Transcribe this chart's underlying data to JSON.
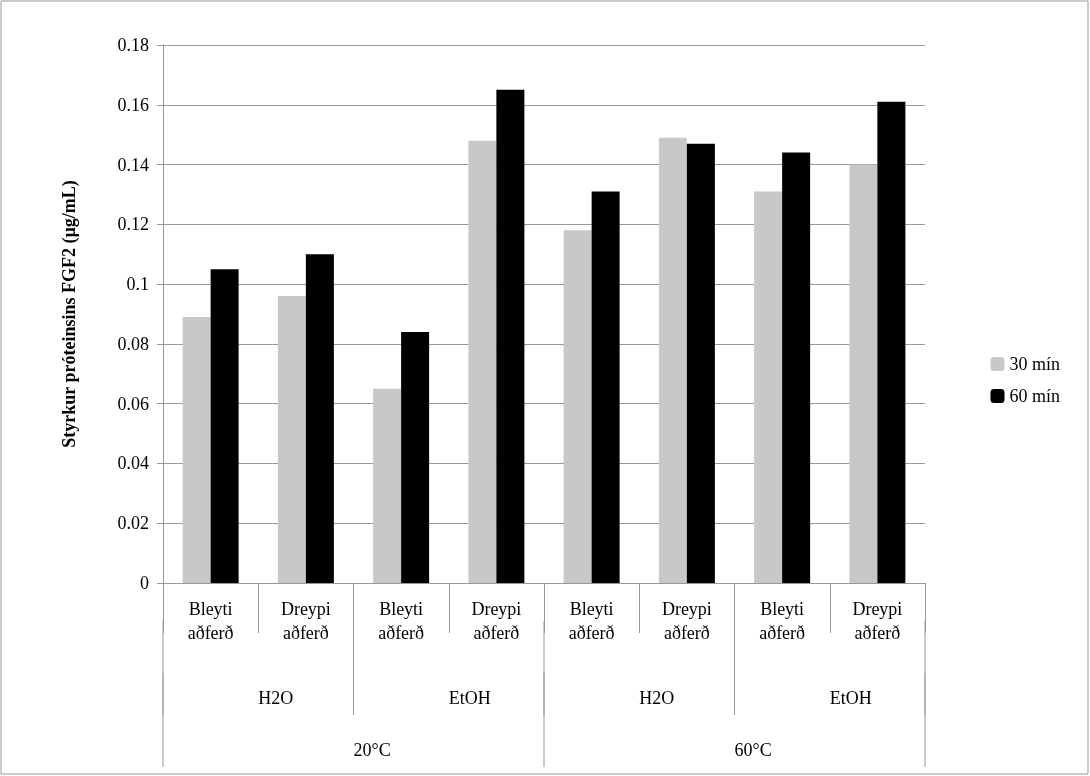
{
  "chart_data": {
    "type": "bar",
    "ylabel": "Styrkur próteinsins FGF2 (µg/mL)",
    "categories": [
      "Bleyti\naðferð",
      "Dreypi\naðferð",
      "Bleyti\naðferð",
      "Dreypi\naðferð",
      "Bleyti\naðferð",
      "Dreypi\naðferð",
      "Bleyti\naðferð",
      "Dreypi\naðferð"
    ],
    "series": [
      {
        "name": "30 mín",
        "color": "#c8c8c8",
        "values": [
          0.089,
          0.096,
          0.065,
          0.148,
          0.118,
          0.149,
          0.131,
          0.14
        ]
      },
      {
        "name": "60 mín",
        "color": "#000000",
        "values": [
          0.105,
          0.11,
          0.084,
          0.165,
          0.131,
          0.147,
          0.144,
          0.161
        ]
      }
    ],
    "annotations": [
      "H2O",
      "EtOH",
      "H2O",
      "EtOH",
      "20°C",
      "60°C"
    ],
    "ylim": [
      0,
      0.18
    ],
    "yticks": [
      0,
      0.02,
      0.04,
      0.06,
      0.08,
      0.1,
      0.12,
      0.14,
      0.16,
      0.18
    ],
    "grid": "y",
    "legend": "right"
  }
}
